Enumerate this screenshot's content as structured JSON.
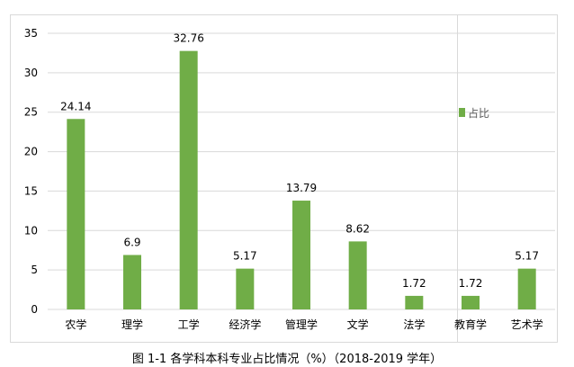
{
  "chart_data": {
    "type": "bar",
    "title": "",
    "categories": [
      "农学",
      "理学",
      "工学",
      "经济学",
      "管理学",
      "文学",
      "法学",
      "教育学",
      "艺术学"
    ],
    "series": [
      {
        "name": "占比",
        "values": [
          24.14,
          6.9,
          32.76,
          5.17,
          13.79,
          8.62,
          1.72,
          1.72,
          5.17
        ]
      }
    ],
    "data_labels": [
      "24.14",
      "6.9",
      "32.76",
      "5.17",
      "13.79",
      "8.62",
      "1.72",
      "1.72",
      "5.17"
    ],
    "yticks": [
      "0",
      "5",
      "10",
      "15",
      "20",
      "25",
      "30",
      "35"
    ],
    "ylim": [
      0,
      35
    ],
    "grid": true,
    "legend_position": "right",
    "bar_color": "#70ad47",
    "xlabel": "",
    "ylabel": ""
  },
  "caption": "图 1-1   各学科本科专业占比情况（%）（2018-2019 学年）"
}
